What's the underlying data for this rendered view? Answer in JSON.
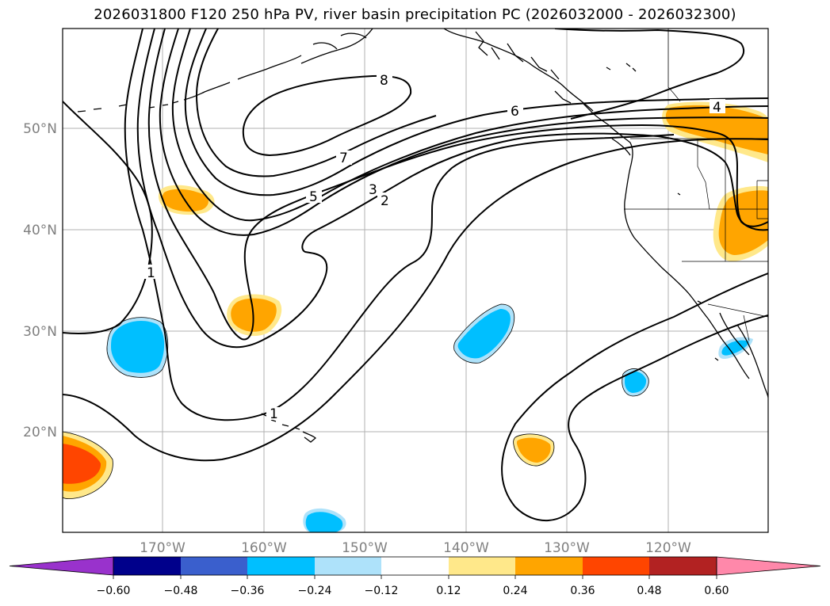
{
  "title": "2026031800 F120 250 hPa PV, river basin precipitation PC (2026032000 - 2026032300)",
  "map": {
    "lat_labels": [
      "50°N",
      "40°N",
      "30°N",
      "20°N"
    ],
    "lon_labels": [
      "170°W",
      "160°W",
      "150°W",
      "140°W",
      "130°W",
      "120°W"
    ],
    "pv_contour_labels": [
      "8",
      "7",
      "6",
      "5",
      "4",
      "3",
      "2",
      "1",
      "1"
    ],
    "colors": {
      "frame": "#000000",
      "grid": "#b0b0b0",
      "coast": "#000000",
      "contour": "#000000"
    }
  },
  "colorbar": {
    "ticks": [
      "−0.60",
      "−0.48",
      "−0.36",
      "−0.24",
      "−0.12",
      "0.12",
      "0.24",
      "0.36",
      "0.48",
      "0.60"
    ],
    "colors": [
      "#9932cc",
      "#00008b",
      "#3a5fcd",
      "#00bfff",
      "#aee2fa",
      "#ffffff",
      "#ffe88a",
      "#ffa500",
      "#ff4500",
      "#b22222",
      "#ff88aa"
    ]
  }
}
